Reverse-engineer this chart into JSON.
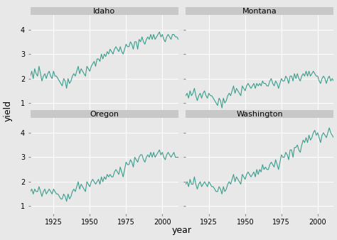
{
  "xlabel": "year",
  "ylabel": "yield",
  "line_color": "#3a9e8d",
  "line_width": 0.8,
  "bg_color": "#e8e8e8",
  "panel_bg": "#e8e8e8",
  "strip_bg": "#c8c8c8",
  "grid_color": "#ffffff",
  "states": [
    "Idaho",
    "Montana",
    "Oregon",
    "Washington"
  ],
  "years": [
    1909,
    1910,
    1911,
    1912,
    1913,
    1914,
    1915,
    1916,
    1917,
    1918,
    1919,
    1920,
    1921,
    1922,
    1923,
    1924,
    1925,
    1926,
    1927,
    1928,
    1929,
    1930,
    1931,
    1932,
    1933,
    1934,
    1935,
    1936,
    1937,
    1938,
    1939,
    1940,
    1941,
    1942,
    1943,
    1944,
    1945,
    1946,
    1947,
    1948,
    1949,
    1950,
    1951,
    1952,
    1953,
    1954,
    1955,
    1956,
    1957,
    1958,
    1959,
    1960,
    1961,
    1962,
    1963,
    1964,
    1965,
    1966,
    1967,
    1968,
    1969,
    1970,
    1971,
    1972,
    1973,
    1974,
    1975,
    1976,
    1977,
    1978,
    1979,
    1980,
    1981,
    1982,
    1983,
    1984,
    1985,
    1986,
    1987,
    1988,
    1989,
    1990,
    1991,
    1992,
    1993,
    1994,
    1995,
    1996,
    1997,
    1998,
    1999,
    2000,
    2001,
    2002,
    2003,
    2004,
    2005,
    2006,
    2007,
    2008,
    2009,
    2010,
    2011
  ],
  "idaho": [
    2.1,
    2.3,
    2.0,
    2.4,
    2.2,
    2.1,
    2.5,
    2.2,
    1.9,
    2.1,
    2.2,
    2.0,
    2.2,
    2.3,
    2.1,
    2.0,
    2.3,
    2.1,
    2.1,
    2.0,
    1.9,
    1.8,
    1.7,
    2.0,
    1.9,
    1.6,
    2.0,
    1.8,
    1.9,
    2.1,
    2.2,
    2.1,
    2.3,
    2.5,
    2.2,
    2.4,
    2.3,
    2.2,
    2.1,
    2.5,
    2.4,
    2.3,
    2.5,
    2.6,
    2.7,
    2.5,
    2.8,
    2.8,
    2.7,
    3.0,
    2.8,
    3.0,
    2.9,
    3.1,
    3.0,
    3.2,
    3.1,
    3.0,
    3.2,
    3.3,
    3.2,
    3.1,
    3.3,
    3.1,
    3.0,
    3.2,
    3.4,
    3.3,
    3.3,
    3.5,
    3.4,
    3.2,
    3.5,
    3.5,
    3.2,
    3.6,
    3.5,
    3.7,
    3.5,
    3.4,
    3.6,
    3.7,
    3.6,
    3.8,
    3.6,
    3.8,
    3.6,
    3.7,
    3.8,
    3.9,
    3.7,
    3.8,
    3.6,
    3.5,
    3.7,
    3.8,
    3.7,
    3.6,
    3.8,
    3.8,
    3.7,
    3.7,
    3.6
  ],
  "montana": [
    1.3,
    1.4,
    1.2,
    1.5,
    1.3,
    1.4,
    1.6,
    1.3,
    1.1,
    1.3,
    1.4,
    1.2,
    1.4,
    1.5,
    1.3,
    1.2,
    1.4,
    1.3,
    1.3,
    1.2,
    1.1,
    1.0,
    0.9,
    1.2,
    1.1,
    0.8,
    1.2,
    1.0,
    1.1,
    1.3,
    1.4,
    1.3,
    1.5,
    1.7,
    1.4,
    1.6,
    1.5,
    1.4,
    1.3,
    1.7,
    1.6,
    1.5,
    1.7,
    1.8,
    1.7,
    1.6,
    1.7,
    1.8,
    1.6,
    1.8,
    1.7,
    1.8,
    1.7,
    1.9,
    1.8,
    1.8,
    1.7,
    1.7,
    1.9,
    2.0,
    1.8,
    1.7,
    1.9,
    1.8,
    1.6,
    1.8,
    2.0,
    1.9,
    1.9,
    2.1,
    2.0,
    1.8,
    2.1,
    2.1,
    1.9,
    2.2,
    2.0,
    2.2,
    2.0,
    1.9,
    2.1,
    2.2,
    2.1,
    2.3,
    2.1,
    2.3,
    2.1,
    2.2,
    2.3,
    2.2,
    2.1,
    2.1,
    1.9,
    1.8,
    2.0,
    2.1,
    2.0,
    1.8,
    2.0,
    2.1,
    1.9,
    2.0,
    1.9
  ],
  "oregon": [
    1.6,
    1.7,
    1.5,
    1.7,
    1.6,
    1.6,
    1.8,
    1.6,
    1.4,
    1.6,
    1.7,
    1.5,
    1.6,
    1.7,
    1.6,
    1.5,
    1.7,
    1.6,
    1.5,
    1.5,
    1.4,
    1.3,
    1.3,
    1.5,
    1.4,
    1.2,
    1.5,
    1.3,
    1.4,
    1.6,
    1.7,
    1.6,
    1.8,
    2.0,
    1.7,
    1.9,
    1.8,
    1.7,
    1.6,
    2.0,
    1.9,
    1.8,
    2.0,
    2.1,
    2.0,
    1.9,
    2.0,
    2.1,
    1.9,
    2.2,
    2.0,
    2.2,
    2.1,
    2.3,
    2.2,
    2.3,
    2.2,
    2.2,
    2.4,
    2.5,
    2.4,
    2.3,
    2.6,
    2.4,
    2.2,
    2.5,
    2.8,
    2.7,
    2.7,
    2.9,
    2.8,
    2.6,
    3.0,
    2.9,
    2.8,
    3.0,
    3.1,
    3.1,
    2.9,
    2.8,
    3.0,
    3.1,
    3.0,
    3.2,
    3.0,
    3.2,
    3.0,
    3.1,
    3.2,
    3.3,
    3.1,
    3.2,
    3.0,
    2.9,
    3.1,
    3.2,
    3.1,
    3.0,
    3.1,
    3.2,
    3.0,
    3.0,
    3.0
  ],
  "washington": [
    1.9,
    2.0,
    1.8,
    2.1,
    1.9,
    1.9,
    2.2,
    1.9,
    1.7,
    1.9,
    2.0,
    1.8,
    1.9,
    2.0,
    1.9,
    1.8,
    2.0,
    1.9,
    1.8,
    1.8,
    1.7,
    1.6,
    1.6,
    1.8,
    1.7,
    1.5,
    1.8,
    1.6,
    1.7,
    1.9,
    2.0,
    1.9,
    2.1,
    2.3,
    2.0,
    2.2,
    2.1,
    2.0,
    1.9,
    2.3,
    2.2,
    2.1,
    2.3,
    2.4,
    2.3,
    2.2,
    2.3,
    2.4,
    2.2,
    2.5,
    2.3,
    2.5,
    2.4,
    2.7,
    2.5,
    2.6,
    2.5,
    2.5,
    2.7,
    2.8,
    2.7,
    2.6,
    2.9,
    2.7,
    2.5,
    2.8,
    3.1,
    3.0,
    3.0,
    3.2,
    3.1,
    2.9,
    3.3,
    3.3,
    3.0,
    3.4,
    3.4,
    3.5,
    3.3,
    3.2,
    3.5,
    3.7,
    3.6,
    3.8,
    3.6,
    3.9,
    3.7,
    3.8,
    4.0,
    4.1,
    3.9,
    4.0,
    3.8,
    3.6,
    3.9,
    4.0,
    3.9,
    3.8,
    4.0,
    4.2,
    4.0,
    3.9,
    3.8
  ],
  "xticks": [
    1925,
    1950,
    1975,
    2000
  ],
  "yticks": [
    1,
    2,
    3,
    4
  ],
  "xlim": [
    1909,
    2011
  ],
  "ylim": [
    0.7,
    4.6
  ],
  "strip_fontsize": 8,
  "tick_fontsize": 7,
  "label_fontsize": 9
}
